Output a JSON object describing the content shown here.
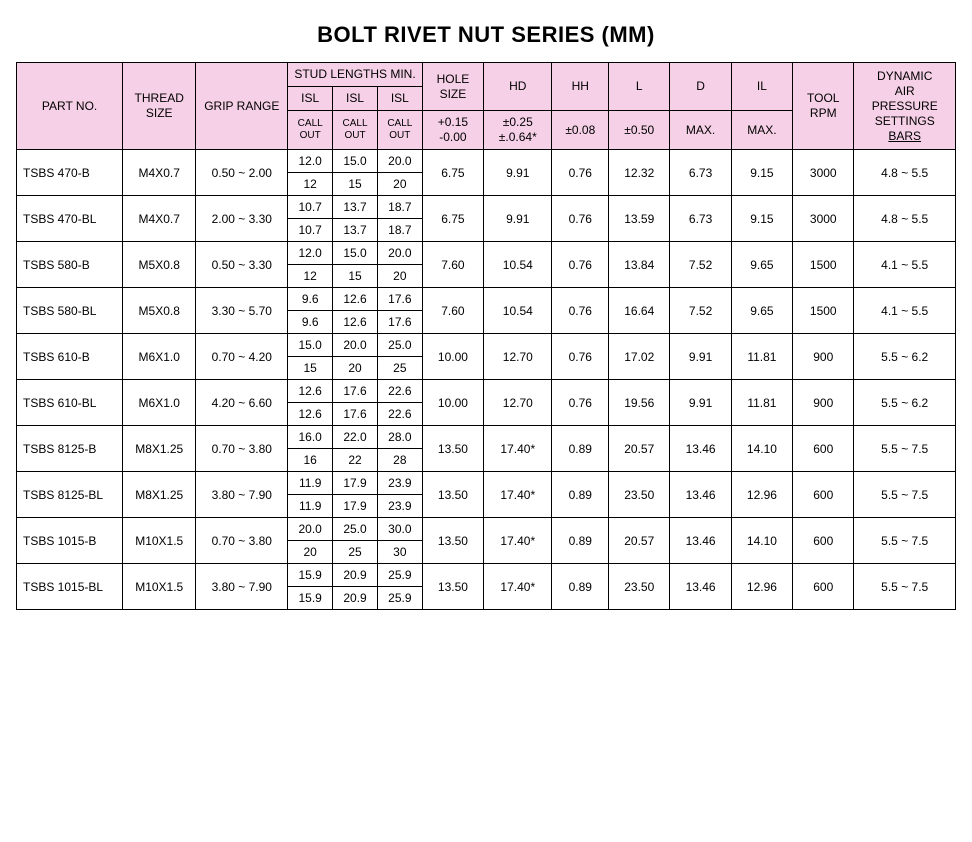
{
  "title": "BOLT RIVET NUT SERIES   (MM)",
  "headers": {
    "part_no": "PART NO.",
    "thread_size": "THREAD SIZE",
    "grip_range": "GRIP RANGE",
    "stud_lengths": "STUD LENGTHS MIN.",
    "isl": "ISL",
    "callout_l1": "CALL",
    "callout_l2": "OUT",
    "hole_size": "HOLE SIZE",
    "hole_tol_top": "+0.15",
    "hole_tol_bot": "-0.00",
    "hd": "HD",
    "hd_tol_top": "±0.25",
    "hd_tol_bot": "±.0.64*",
    "hh": "HH",
    "hh_tol": "±0.08",
    "l": "L",
    "l_tol": "±0.50",
    "d": "D",
    "d_sub": "MAX.",
    "il": "IL",
    "il_sub": "MAX.",
    "tool_rpm": "TOOL RPM",
    "dynamic_l1": "DYNAMIC",
    "dynamic_l2": "AIR",
    "dynamic_l3": "PRESSURE",
    "dynamic_l4": "SETTINGS",
    "dynamic_l5": "BARS"
  },
  "colors": {
    "header_bg": "#f5d0e6",
    "border": "#000000",
    "text": "#000000",
    "bg": "#ffffff"
  },
  "rows": [
    {
      "part": "TSBS 470-B",
      "thread": "M4X0.7",
      "grip": "0.50 ~ 2.00",
      "isl_top": [
        "12.0",
        "15.0",
        "20.0"
      ],
      "isl_bot": [
        "12",
        "15",
        "20"
      ],
      "hole": "6.75",
      "hd": "9.91",
      "hh": "0.76",
      "l": "12.32",
      "d": "6.73",
      "il": "9.15",
      "rpm": "3000",
      "dyn": "4.8 ~ 5.5"
    },
    {
      "part": "TSBS 470-BL",
      "thread": "M4X0.7",
      "grip": "2.00 ~ 3.30",
      "isl_top": [
        "10.7",
        "13.7",
        "18.7"
      ],
      "isl_bot": [
        "10.7",
        "13.7",
        "18.7"
      ],
      "hole": "6.75",
      "hd": "9.91",
      "hh": "0.76",
      "l": "13.59",
      "d": "6.73",
      "il": "9.15",
      "rpm": "3000",
      "dyn": "4.8 ~ 5.5"
    },
    {
      "part": "TSBS 580-B",
      "thread": "M5X0.8",
      "grip": "0.50 ~ 3.30",
      "isl_top": [
        "12.0",
        "15.0",
        "20.0"
      ],
      "isl_bot": [
        "12",
        "15",
        "20"
      ],
      "hole": "7.60",
      "hd": "10.54",
      "hh": "0.76",
      "l": "13.84",
      "d": "7.52",
      "il": "9.65",
      "rpm": "1500",
      "dyn": "4.1 ~ 5.5"
    },
    {
      "part": "TSBS 580-BL",
      "thread": "M5X0.8",
      "grip": "3.30 ~ 5.70",
      "isl_top": [
        "9.6",
        "12.6",
        "17.6"
      ],
      "isl_bot": [
        "9.6",
        "12.6",
        "17.6"
      ],
      "hole": "7.60",
      "hd": "10.54",
      "hh": "0.76",
      "l": "16.64",
      "d": "7.52",
      "il": "9.65",
      "rpm": "1500",
      "dyn": "4.1 ~ 5.5"
    },
    {
      "part": "TSBS 610-B",
      "thread": "M6X1.0",
      "grip": "0.70 ~ 4.20",
      "isl_top": [
        "15.0",
        "20.0",
        "25.0"
      ],
      "isl_bot": [
        "15",
        "20",
        "25"
      ],
      "hole": "10.00",
      "hd": "12.70",
      "hh": "0.76",
      "l": "17.02",
      "d": "9.91",
      "il": "11.81",
      "rpm": "900",
      "dyn": "5.5 ~ 6.2"
    },
    {
      "part": "TSBS 610-BL",
      "thread": "M6X1.0",
      "grip": "4.20 ~ 6.60",
      "isl_top": [
        "12.6",
        "17.6",
        "22.6"
      ],
      "isl_bot": [
        "12.6",
        "17.6",
        "22.6"
      ],
      "hole": "10.00",
      "hd": "12.70",
      "hh": "0.76",
      "l": "19.56",
      "d": "9.91",
      "il": "11.81",
      "rpm": "900",
      "dyn": "5.5 ~ 6.2"
    },
    {
      "part": "TSBS 8125-B",
      "thread": "M8X1.25",
      "grip": "0.70 ~ 3.80",
      "isl_top": [
        "16.0",
        "22.0",
        "28.0"
      ],
      "isl_bot": [
        "16",
        "22",
        "28"
      ],
      "hole": "13.50",
      "hd": "17.40*",
      "hh": "0.89",
      "l": "20.57",
      "d": "13.46",
      "il": "14.10",
      "rpm": "600",
      "dyn": "5.5 ~ 7.5"
    },
    {
      "part": "TSBS 8125-BL",
      "thread": "M8X1.25",
      "grip": "3.80 ~ 7.90",
      "isl_top": [
        "11.9",
        "17.9",
        "23.9"
      ],
      "isl_bot": [
        "11.9",
        "17.9",
        "23.9"
      ],
      "hole": "13.50",
      "hd": "17.40*",
      "hh": "0.89",
      "l": "23.50",
      "d": "13.46",
      "il": "12.96",
      "rpm": "600",
      "dyn": "5.5 ~ 7.5"
    },
    {
      "part": "TSBS 1015-B",
      "thread": "M10X1.5",
      "grip": "0.70 ~ 3.80",
      "isl_top": [
        "20.0",
        "25.0",
        "30.0"
      ],
      "isl_bot": [
        "20",
        "25",
        "30"
      ],
      "hole": "13.50",
      "hd": "17.40*",
      "hh": "0.89",
      "l": "20.57",
      "d": "13.46",
      "il": "14.10",
      "rpm": "600",
      "dyn": "5.5 ~ 7.5"
    },
    {
      "part": "TSBS 1015-BL",
      "thread": "M10X1.5",
      "grip": "3.80 ~ 7.90",
      "isl_top": [
        "15.9",
        "20.9",
        "25.9"
      ],
      "isl_bot": [
        "15.9",
        "20.9",
        "25.9"
      ],
      "hole": "13.50",
      "hd": "17.40*",
      "hh": "0.89",
      "l": "23.50",
      "d": "13.46",
      "il": "12.96",
      "rpm": "600",
      "dyn": "5.5 ~ 7.5"
    }
  ]
}
